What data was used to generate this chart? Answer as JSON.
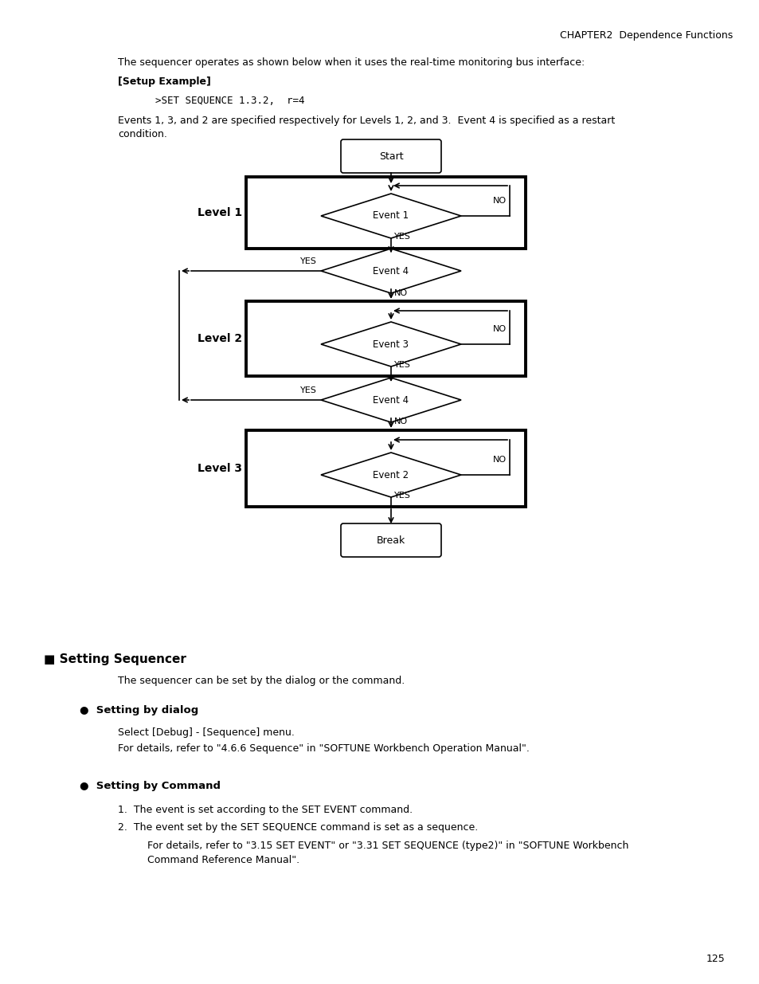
{
  "title_header": "CHAPTER2  Dependence Functions",
  "page_number": "125",
  "intro_text": "The sequencer operates as shown below when it uses the real-time monitoring bus interface:",
  "setup_label": "[Setup Example]",
  "setup_code": ">SET SEQUENCE 1.3.2,  r=4",
  "setup_desc_line1": "Events 1, 3, and 2 are specified respectively for Levels 1, 2, and 3.  Event 4 is specified as a restart",
  "setup_desc_line2": "condition.",
  "section_title": "■ Setting Sequencer",
  "section_desc": "The sequencer can be set by the dialog or the command.",
  "bullet1_title": "●  Setting by dialog",
  "bullet1_line1": "Select [Debug] - [Sequence] menu.",
  "bullet1_line2": "For details, refer to \"4.6.6 Sequence\" in \"SOFTUNE Workbench Operation Manual\".",
  "bullet2_title": "●  Setting by Command",
  "numbered1": "1.  The event is set according to the SET EVENT command.",
  "numbered2": "2.  The event set by the SET SEQUENCE command is set as a sequence.",
  "numbered2_detail_line1": "For details, refer to \"3.15 SET EVENT\" or \"3.31 SET SEQUENCE (type2)\" in \"SOFTUNE Workbench",
  "numbered2_detail_line2": "Command Reference Manual\".",
  "bg_color": "#ffffff"
}
